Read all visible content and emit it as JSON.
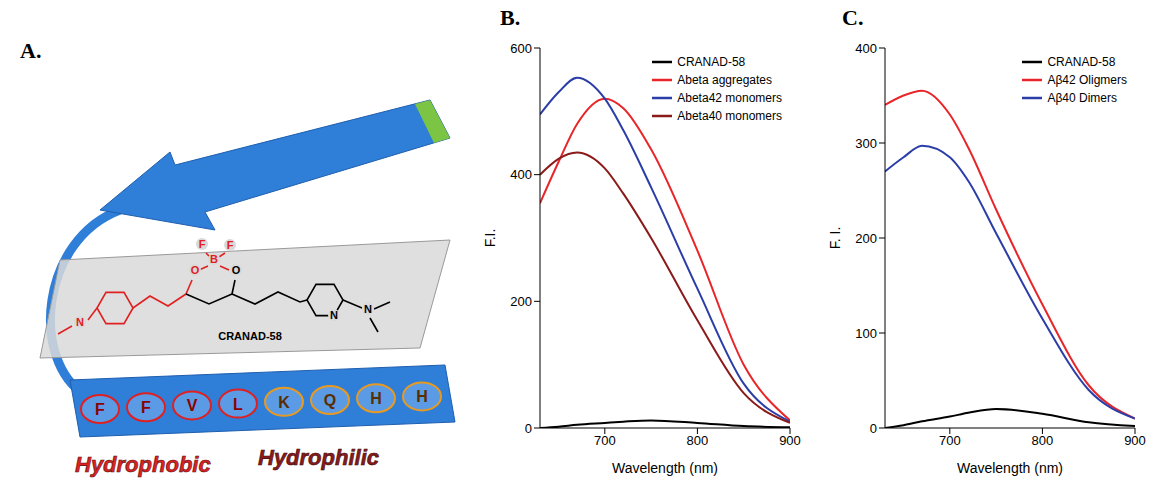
{
  "panel_labels": [
    "A.",
    "B.",
    "C."
  ],
  "diagram": {
    "molecule": "CRANAD-58",
    "atoms": [
      "N",
      "O",
      "B",
      "F",
      "F",
      "O",
      "N",
      "N"
    ],
    "hydrophobic_residues": [
      "F",
      "F",
      "V",
      "L"
    ],
    "hydrophilic_residues": [
      "K",
      "Q",
      "H",
      "H"
    ],
    "region_labels": [
      "Hydrophobic",
      "Hydrophilic"
    ]
  },
  "chart_data": [
    {
      "type": "line",
      "x_label": "Wavelength (nm)",
      "y_label": "F.I.",
      "xlim": [
        630,
        900
      ],
      "xticks": [
        700,
        800,
        900
      ],
      "ylim": [
        0,
        600
      ],
      "yticks": [
        0,
        200,
        400,
        600
      ],
      "grid": false,
      "legend": "top-right",
      "x": [
        630,
        650,
        670,
        700,
        720,
        750,
        800,
        850,
        900
      ],
      "series": [
        {
          "name": "CRANAD-58",
          "color": "#000000",
          "values": [
            0,
            2,
            5,
            8,
            10,
            12,
            8,
            3,
            1
          ]
        },
        {
          "name": "Abeta aggregates",
          "color": "#e8262a",
          "values": [
            355,
            420,
            480,
            520,
            505,
            440,
            280,
            100,
            12
          ]
        },
        {
          "name": "Abeta42 monomers",
          "color": "#2b3ea8",
          "values": [
            495,
            530,
            553,
            520,
            470,
            380,
            220,
            70,
            10
          ]
        },
        {
          "name": "Abeta40 monomers",
          "color": "#8b1a1a",
          "values": [
            400,
            425,
            435,
            410,
            370,
            300,
            170,
            55,
            8
          ]
        }
      ]
    },
    {
      "type": "line",
      "x_label": "Wavelength (nm)",
      "y_label": "F. I.",
      "xlim": [
        630,
        900
      ],
      "xticks": [
        700,
        800,
        900
      ],
      "ylim": [
        0,
        400
      ],
      "yticks": [
        0,
        100,
        200,
        300,
        400
      ],
      "grid": false,
      "legend": "top-right",
      "x": [
        630,
        650,
        670,
        700,
        720,
        750,
        800,
        850,
        900
      ],
      "series": [
        {
          "name": "CRANAD-58",
          "color": "#000000",
          "values": [
            0,
            3,
            7,
            12,
            16,
            20,
            15,
            6,
            2
          ]
        },
        {
          "name": "Aβ42 Oligmers",
          "color": "#e8262a",
          "values": [
            340,
            350,
            355,
            330,
            295,
            230,
            130,
            45,
            10
          ]
        },
        {
          "name": "Aβ40 Dimers",
          "color": "#2b3ea8",
          "values": [
            270,
            285,
            297,
            285,
            260,
            205,
            115,
            40,
            10
          ]
        }
      ]
    }
  ]
}
